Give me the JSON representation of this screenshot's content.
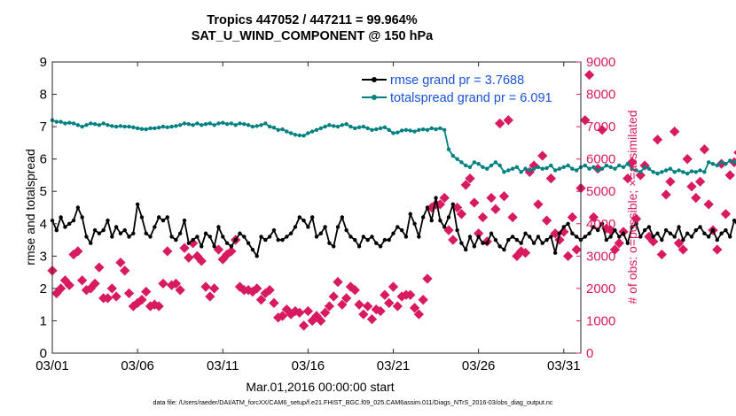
{
  "chart_data": {
    "type": "line",
    "title": "Tropics 447052 / 447211 = 99.964%",
    "subtitle": "SAT_U_WIND_COMPONENT @ 150 hPa",
    "xlabel": "Mar.01,2016 00:00:00 start",
    "ylabel_left": "rmse and totalspread",
    "ylabel_right": "# of obs: o=possible; ×=assimilated",
    "footer": "data file: /Users/raeder/DAI/ATM_forcXX/CAM6_setup/f.e21.FHIST_BGC.f09_025.CAM6assim.011/Diags_NTrS_2016-03/obs_diag_output.nc",
    "xlim": [
      1,
      32
    ],
    "ylim_left": [
      0,
      9
    ],
    "ylim_right": [
      0,
      9000
    ],
    "x_ticks": [
      1,
      6,
      11,
      16,
      21,
      26,
      31
    ],
    "x_tick_labels": [
      "03/01",
      "03/06",
      "03/11",
      "03/16",
      "03/21",
      "03/26",
      "03/31"
    ],
    "y_ticks_left": [
      "0",
      "1",
      "2",
      "3",
      "4",
      "5",
      "6",
      "7",
      "8",
      "9"
    ],
    "y_ticks_right": [
      "0",
      "1000",
      "2000",
      "3000",
      "4000",
      "5000",
      "6000",
      "7000",
      "8000",
      "9000"
    ],
    "x_start": 1,
    "x_step_days": 0.25,
    "legend_position": "top-right",
    "colors": {
      "rmse": "#000000",
      "totalspread": "#008080",
      "obs": "#d81b60"
    },
    "series": [
      {
        "name": "rmse grand pr = 3.7688",
        "axis": "left",
        "values": [
          4.1,
          3.8,
          4.2,
          3.9,
          4.0,
          4.1,
          4.5,
          4.2,
          3.6,
          3.4,
          3.8,
          3.7,
          3.8,
          4.1,
          3.6,
          3.9,
          3.7,
          3.8,
          3.6,
          3.7,
          4.6,
          4.2,
          3.7,
          3.6,
          3.9,
          4.2,
          4.1,
          4.2,
          3.6,
          3.5,
          3.7,
          4.1,
          3.4,
          3.5,
          3.6,
          3.3,
          3.7,
          3.6,
          3.3,
          3.9,
          3.6,
          3.4,
          3.3,
          3.5,
          3.7,
          3.6,
          3.4,
          3.2,
          3.0,
          3.6,
          3.5,
          3.6,
          3.8,
          3.5,
          3.5,
          3.6,
          3.7,
          3.9,
          4.2,
          4.1,
          3.9,
          4.2,
          3.6,
          3.7,
          3.9,
          3.4,
          3.3,
          3.9,
          4.2,
          3.8,
          3.6,
          3.5,
          3.3,
          3.6,
          3.5,
          3.6,
          3.4,
          3.3,
          3.5,
          3.5,
          3.7,
          3.9,
          3.8,
          3.6,
          4.3,
          4.0,
          3.6,
          4.2,
          4.5,
          4.1,
          4.8,
          4.1,
          3.9,
          4.2,
          4.6,
          3.8,
          3.4,
          3.2,
          3.6,
          3.3,
          3.6,
          3.4,
          3.4,
          3.7,
          3.5,
          3.3,
          3.2,
          3.5,
          3.6,
          3.5,
          3.4,
          3.7,
          3.6,
          3.4,
          3.6,
          3.4,
          3.5,
          3.6,
          3.1,
          3.7,
          3.9,
          4.0,
          3.7,
          3.6,
          3.5,
          3.6,
          3.7,
          3.9,
          3.8,
          4.0,
          3.5,
          3.6,
          3.8,
          3.6,
          3.7,
          3.4,
          3.9,
          4.0,
          3.6,
          3.8,
          3.9,
          3.6,
          3.7,
          3.5,
          3.8,
          3.7,
          3.6,
          3.9,
          3.5,
          3.7,
          3.6,
          3.8,
          3.9,
          3.7,
          3.6,
          3.8,
          3.5,
          3.7,
          3.8,
          3.6,
          4.1,
          3.9,
          3.7,
          4.2,
          4.0,
          3.8,
          3.9,
          4.0,
          3.6,
          3.9,
          4.3,
          3.8,
          4.1,
          3.9,
          4.0,
          3.7,
          4.4,
          4.2,
          4.1,
          3.9,
          4.3,
          4.0,
          3.8,
          3.9,
          3.7,
          3.6,
          3.8,
          3.9,
          4.0,
          4.1,
          3.8,
          3.9,
          3.7,
          3.9,
          4.0,
          4.1,
          3.8,
          3.9,
          4.0,
          3.6,
          3.8,
          3.9
        ],
        "style": "line-marker"
      },
      {
        "name": "totalspread grand pr = 6.091",
        "axis": "left",
        "values": [
          7.2,
          7.15,
          7.15,
          7.1,
          7.12,
          7.1,
          7.05,
          7.0,
          7.05,
          7.1,
          7.08,
          7.05,
          7.1,
          7.05,
          7.02,
          7.0,
          7.02,
          7.0,
          7.0,
          6.98,
          6.95,
          6.93,
          6.92,
          6.95,
          6.95,
          6.97,
          7.0,
          6.98,
          7.0,
          7.02,
          7.05,
          7.1,
          7.08,
          7.05,
          7.1,
          7.05,
          7.08,
          7.1,
          7.05,
          7.1,
          7.12,
          7.08,
          7.1,
          7.05,
          7.1,
          7.08,
          7.05,
          7.0,
          7.02,
          7.05,
          7.1,
          7.0,
          6.97,
          6.9,
          6.92,
          6.85,
          6.8,
          6.75,
          6.73,
          6.72,
          6.8,
          6.85,
          6.9,
          6.95,
          7.0,
          7.05,
          7.02,
          7.0,
          7.05,
          7.08,
          7.0,
          6.95,
          6.98,
          7.0,
          6.95,
          6.9,
          6.92,
          6.95,
          6.98,
          6.9,
          6.8,
          6.82,
          6.88,
          6.9,
          6.88,
          6.85,
          6.9,
          6.92,
          6.9,
          6.95,
          6.92,
          6.95,
          6.9,
          6.3,
          6.1,
          6.0,
          5.9,
          5.8,
          5.75,
          5.9,
          5.85,
          5.75,
          5.7,
          5.8,
          5.9,
          5.8,
          5.6,
          5.65,
          5.7,
          5.75,
          5.6,
          5.7,
          5.65,
          5.7,
          5.75,
          5.7,
          5.72,
          5.8,
          5.65,
          5.7,
          5.75,
          5.8,
          5.7,
          5.65,
          5.75,
          5.8,
          5.7,
          5.75,
          5.65,
          5.7,
          5.8,
          5.75,
          5.7,
          5.8,
          5.75,
          5.85,
          5.7,
          5.65,
          5.6,
          5.75,
          5.7,
          5.6,
          5.55,
          5.6,
          5.65,
          5.7,
          5.6,
          5.65,
          5.6,
          5.55,
          5.62,
          5.6,
          5.65,
          5.6,
          5.9,
          5.85,
          5.8,
          5.9,
          5.85,
          5.95,
          5.9,
          6.0,
          5.8,
          5.9,
          5.85,
          5.95,
          5.9,
          5.85,
          6.0,
          5.9,
          5.85,
          5.8,
          5.95,
          6.05,
          5.9,
          5.85,
          5.95,
          6.1,
          5.95,
          6.0,
          6.05,
          5.95,
          5.9,
          6.0,
          5.85,
          5.95,
          6.05,
          6.0,
          6.05,
          5.9,
          5.75,
          5.85,
          5.65,
          5.7,
          5.75,
          5.9,
          5.85,
          5.8,
          5.75,
          5.8,
          5.8
        ],
        "style": "line-marker"
      },
      {
        "name": "obs count (possible / assimilated)",
        "axis": "right",
        "values": [
          2550,
          1850,
          2000,
          2250,
          2100,
          3050,
          3150,
          2250,
          1950,
          2000,
          2150,
          2650,
          1700,
          1700,
          2000,
          1750,
          2800,
          2550,
          1850,
          1450,
          1550,
          1650,
          1900,
          1450,
          1500,
          1450,
          2150,
          3150,
          2100,
          2150,
          1950,
          3250,
          2950,
          3400,
          3000,
          2850,
          2050,
          1750,
          2000,
          3200,
          2900,
          3050,
          3150,
          3500,
          2050,
          1950,
          1950,
          1900,
          2000,
          1650,
          1850,
          1950,
          1550,
          1100,
          1150,
          1350,
          1200,
          1300,
          1250,
          850,
          1300,
          1000,
          1150,
          1000,
          1250,
          1450,
          1750,
          2200,
          1500,
          1700,
          2050,
          1950,
          1500,
          1200,
          1450,
          1050,
          1350,
          1300,
          1800,
          1550,
          2050,
          1450,
          1750,
          1800,
          1800,
          1400,
          1200,
          1650,
          2300,
          4500,
          4600,
          4600,
          4800,
          3800,
          3500,
          4500,
          4300,
          5200,
          5400,
          4650,
          3700,
          4200,
          3450,
          4800,
          4450,
          7100,
          4850,
          7200,
          4200,
          3000,
          3150,
          3100,
          5600,
          5800,
          4600,
          6100,
          4100,
          5400,
          3700,
          3500,
          3750,
          3000,
          4200,
          3200,
          5100,
          7200,
          8600,
          4200,
          5700,
          6900,
          3850,
          3800,
          3200,
          3400,
          3750,
          5400,
          5900,
          4150,
          5500,
          5800,
          3600,
          3450,
          6600,
          3050,
          4900,
          5300,
          6850,
          3400,
          3200,
          6000,
          5150,
          4800,
          5300,
          6300,
          4600,
          3800,
          3200,
          5850,
          4300,
          5500,
          5900,
          6200,
          5950,
          5700,
          4000,
          3600,
          6200,
          3550,
          5400,
          3900,
          6400,
          3450,
          3200,
          3600,
          3900,
          4500,
          5200,
          4050,
          6100,
          5600,
          5500,
          6100,
          4700,
          5300,
          6700,
          4700,
          3800,
          5500,
          4200,
          5600,
          4100,
          5300,
          6300,
          8800,
          5800,
          6400,
          4100,
          0
        ],
        "style": "marker"
      }
    ]
  }
}
